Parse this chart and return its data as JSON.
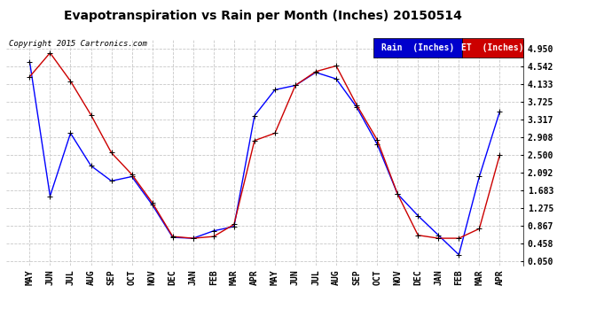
{
  "title": "Evapotranspiration vs Rain per Month (Inches) 20150514",
  "copyright": "Copyright 2015 Cartronics.com",
  "months": [
    "MAY",
    "JUN",
    "JUL",
    "AUG",
    "SEP",
    "OCT",
    "NOV",
    "DEC",
    "JAN",
    "FEB",
    "MAR",
    "APR",
    "MAY",
    "JUN",
    "JUL",
    "AUG",
    "SEP",
    "OCT",
    "NOV",
    "DEC",
    "JAN",
    "FEB",
    "MAR",
    "APR"
  ],
  "rain": [
    4.65,
    1.55,
    3.0,
    2.25,
    1.9,
    2.0,
    1.35,
    0.6,
    0.58,
    0.75,
    0.85,
    3.4,
    4.0,
    4.1,
    4.4,
    4.25,
    3.6,
    2.75,
    1.6,
    1.1,
    0.65,
    0.2,
    2.0,
    3.5
  ],
  "et": [
    4.3,
    4.85,
    4.2,
    3.42,
    2.55,
    2.05,
    1.4,
    0.62,
    0.58,
    0.62,
    0.9,
    2.83,
    3.0,
    4.1,
    4.42,
    4.55,
    3.65,
    2.85,
    1.6,
    0.65,
    0.58,
    0.58,
    0.8,
    2.5
  ],
  "yticks": [
    0.05,
    0.458,
    0.867,
    1.275,
    1.683,
    2.092,
    2.5,
    2.908,
    3.317,
    3.725,
    4.133,
    4.542,
    4.95
  ],
  "rain_color": "#0000ff",
  "et_color": "#cc0000",
  "rain_legend_color": "#0000cc",
  "et_legend_color": "#cc0000",
  "bg_color": "#ffffff",
  "grid_color": "#c8c8c8",
  "title_fontsize": 10,
  "copy_fontsize": 6.5,
  "tick_fontsize": 7,
  "legend_fontsize": 7
}
